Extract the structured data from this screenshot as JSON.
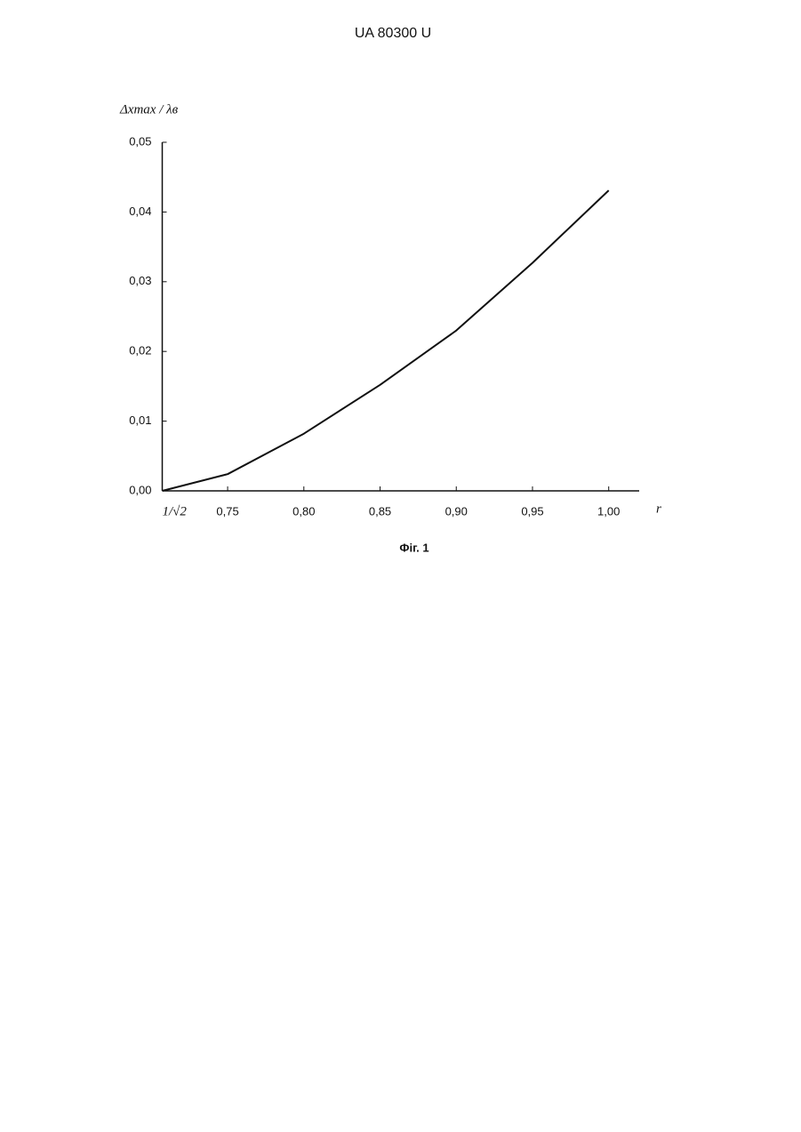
{
  "header": "UA   80300   U",
  "caption": "Фіг. 1",
  "chart_data": {
    "type": "line",
    "y_label": "Δxmax / λв",
    "x_label": "r",
    "x": [
      0.7071,
      0.75,
      0.8,
      0.85,
      0.9,
      0.95,
      1.0
    ],
    "values": [
      0,
      0.0024,
      0.0082,
      0.0152,
      0.023,
      0.0327,
      0.0431
    ],
    "color": "#111111",
    "xlim": [
      0.7071,
      1.02
    ],
    "ylim": [
      0,
      0.05
    ],
    "xticks": [
      {
        "value": 0.7071,
        "label": "1/√2"
      },
      {
        "value": 0.75,
        "label": "0,75"
      },
      {
        "value": 0.8,
        "label": "0,80"
      },
      {
        "value": 0.85,
        "label": "0,85"
      },
      {
        "value": 0.9,
        "label": "0,90"
      },
      {
        "value": 0.95,
        "label": "0,95"
      },
      {
        "value": 1.0,
        "label": "1,00"
      }
    ],
    "yticks": [
      {
        "value": 0,
        "label": "0,00"
      },
      {
        "value": 0.01,
        "label": "0,01"
      },
      {
        "value": 0.02,
        "label": "0,02"
      },
      {
        "value": 0.03,
        "label": "0,03"
      },
      {
        "value": 0.04,
        "label": "0,04"
      },
      {
        "value": 0.05,
        "label": "0,05"
      }
    ]
  }
}
